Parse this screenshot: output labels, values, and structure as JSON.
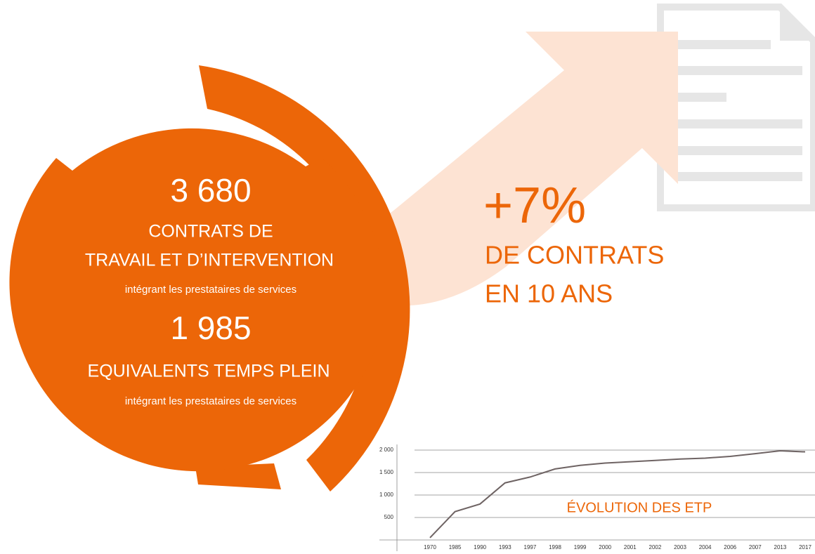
{
  "infographic": {
    "contracts_number": "3 680",
    "contracts_line1": "CONTRATS DE",
    "contracts_line2": "TRAVAIL ET D’INTERVENTION",
    "contracts_note": "intégrant les prestataires de services",
    "fte_number": "1 985",
    "fte_label": "EQUIVALENTS TEMPS PLEIN",
    "fte_note": "intégrant les prestataires de services",
    "growth_value": "+7%",
    "growth_line1": "DE CONTRATS",
    "growth_line2": "EN 10 ANS"
  },
  "chart_data": {
    "type": "line",
    "title": "ÉVOLUTION DES ETP",
    "categories": [
      "1970",
      "1985",
      "1990",
      "1993",
      "1997",
      "1998",
      "1999",
      "2000",
      "2001",
      "2002",
      "2003",
      "2004",
      "2006",
      "2007",
      "2013",
      "2017"
    ],
    "series": [
      {
        "name": "ETP",
        "color": "#6e6363",
        "values": [
          50,
          630,
          800,
          1270,
          1400,
          1580,
          1660,
          1710,
          1740,
          1770,
          1800,
          1820,
          1860,
          1920,
          1985,
          1960
        ]
      }
    ],
    "ylim": [
      0,
      2000
    ],
    "yticks": [
      500,
      {
        "value": 1000,
        "label": "1 000"
      },
      {
        "value": 1500,
        "label": "1 500"
      },
      {
        "value": 2000,
        "label": "2 000"
      }
    ],
    "grid": true
  }
}
